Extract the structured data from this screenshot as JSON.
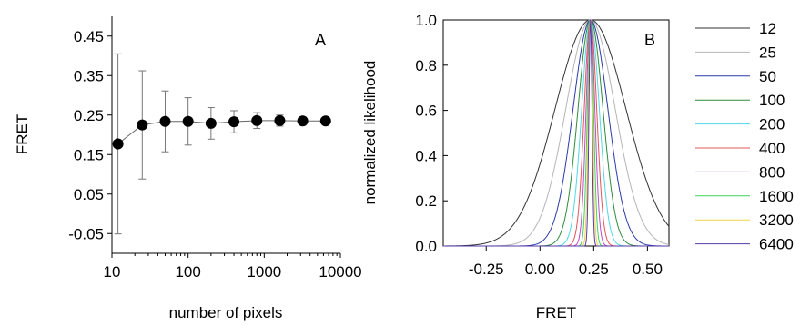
{
  "chart_data": [
    {
      "panel": "A",
      "type": "scatter",
      "xlabel": "number of pixels",
      "ylabel": "FRET",
      "x_scale": "log",
      "xlim": [
        10,
        10000
      ],
      "ylim": [
        -0.1,
        0.5
      ],
      "xticks": [
        10,
        100,
        1000,
        10000
      ],
      "xtick_labels": [
        "10",
        "100",
        "1000",
        "10000"
      ],
      "yticks": [
        -0.05,
        0.05,
        0.15,
        0.25,
        0.35,
        0.45
      ],
      "ytick_labels": [
        "-0.05",
        "0.05",
        "0.15",
        "0.25",
        "0.35",
        "0.45"
      ],
      "grid": false,
      "points": [
        {
          "x": 12,
          "y": 0.177,
          "err": 0.228
        },
        {
          "x": 25,
          "y": 0.225,
          "err": 0.137
        },
        {
          "x": 50,
          "y": 0.234,
          "err": 0.077
        },
        {
          "x": 100,
          "y": 0.234,
          "err": 0.06
        },
        {
          "x": 200,
          "y": 0.229,
          "err": 0.04
        },
        {
          "x": 400,
          "y": 0.233,
          "err": 0.028
        },
        {
          "x": 800,
          "y": 0.236,
          "err": 0.02
        },
        {
          "x": 1600,
          "y": 0.236,
          "err": 0.014
        },
        {
          "x": 3200,
          "y": 0.235,
          "err": 0.01
        },
        {
          "x": 6400,
          "y": 0.235,
          "err": 0.007
        }
      ],
      "color": "#000000"
    },
    {
      "panel": "B",
      "type": "line",
      "xlabel": "FRET",
      "ylabel": "normalized likelihood",
      "xlim": [
        -0.45,
        0.6
      ],
      "ylim": [
        0.0,
        1.0
      ],
      "xticks": [
        -0.25,
        0.0,
        0.25,
        0.5
      ],
      "xtick_labels": [
        "-0.25",
        "0.00",
        "0.25",
        "0.50"
      ],
      "yticks": [
        0.0,
        0.2,
        0.4,
        0.6,
        0.8,
        1.0
      ],
      "ytick_labels": [
        "0.0",
        "0.2",
        "0.4",
        "0.6",
        "0.8",
        "1.0"
      ],
      "grid": false,
      "legend_position": "right",
      "curve_center": 0.235,
      "series": [
        {
          "name": "12",
          "sigma": 0.165,
          "color": "#333333"
        },
        {
          "name": "25",
          "sigma": 0.115,
          "color": "#b5b5b5"
        },
        {
          "name": "50",
          "sigma": 0.081,
          "color": "#2a3aa8"
        },
        {
          "name": "100",
          "sigma": 0.058,
          "color": "#2e8b3a"
        },
        {
          "name": "200",
          "sigma": 0.041,
          "color": "#4fd8e8"
        },
        {
          "name": "400",
          "sigma": 0.029,
          "color": "#e25555"
        },
        {
          "name": "800",
          "sigma": 0.0205,
          "color": "#c04ac8"
        },
        {
          "name": "1600",
          "sigma": 0.0145,
          "color": "#3fd35c"
        },
        {
          "name": "3200",
          "sigma": 0.0102,
          "color": "#f0d048"
        },
        {
          "name": "6400",
          "sigma": 0.0072,
          "color": "#5a3aa8"
        }
      ]
    }
  ]
}
